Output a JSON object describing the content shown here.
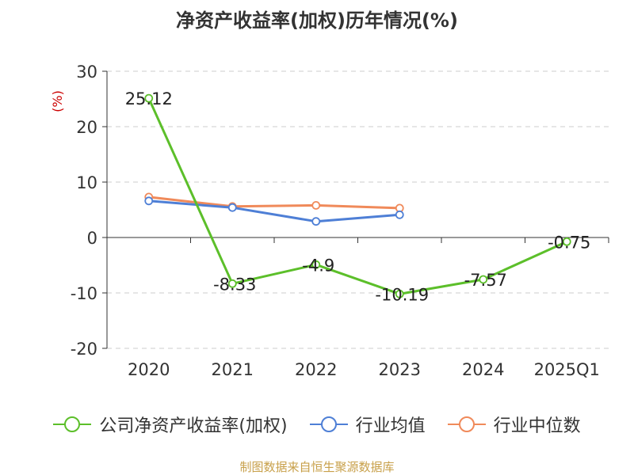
{
  "title": "净资产收益率(加权)历年情况(%)",
  "source": "制图数据来自恒生聚源数据库",
  "chart_data": {
    "type": "line",
    "title": "净资产收益率(加权)历年情况(%)",
    "ylabel": "(%)",
    "ylim": [
      -20,
      30
    ],
    "yticks": [
      30,
      20,
      10,
      0,
      -10,
      -20
    ],
    "categories": [
      "2020",
      "2021",
      "2022",
      "2023",
      "2024",
      "2025Q1"
    ],
    "grid": true,
    "legend_position": "bottom",
    "series": [
      {
        "name": "公司净资产收益率(加权)",
        "color": "#5cbf2a",
        "values": [
          25.12,
          -8.33,
          -4.9,
          -10.19,
          -7.57,
          -0.75
        ],
        "labels": [
          "25.12",
          "-8.33",
          "-4.9",
          "-10.19",
          "-7.57",
          "-0.75"
        ]
      },
      {
        "name": "行业均值",
        "color": "#4e7fd6",
        "values": [
          6.6,
          5.4,
          2.9,
          4.1,
          null,
          null
        ]
      },
      {
        "name": "行业中位数",
        "color": "#f08a5a",
        "values": [
          7.3,
          5.6,
          5.8,
          5.3,
          null,
          null
        ]
      }
    ]
  }
}
